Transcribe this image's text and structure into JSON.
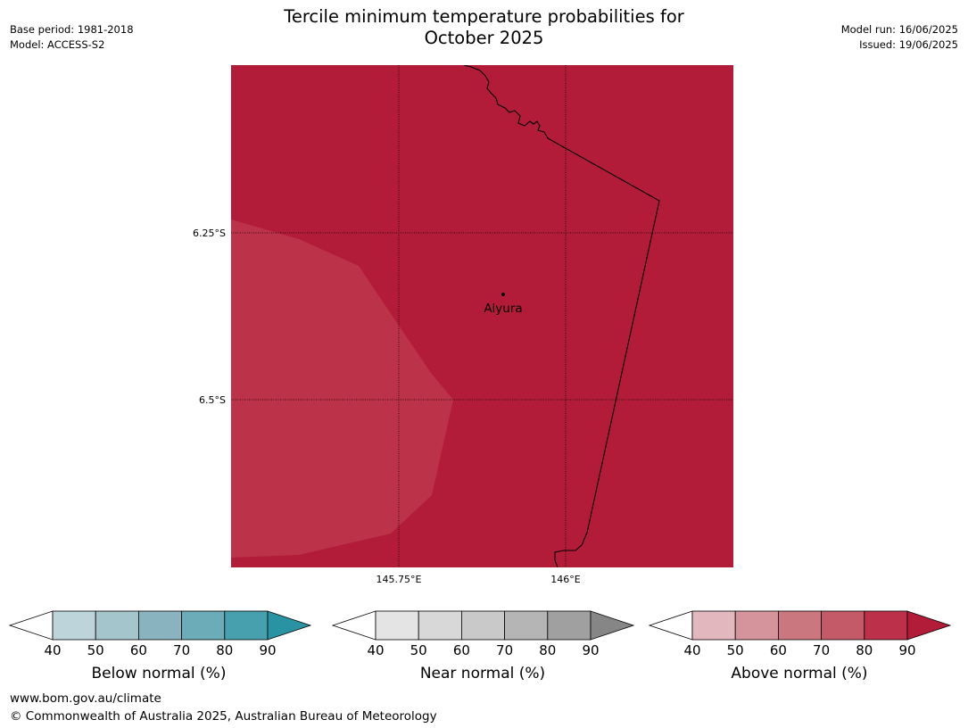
{
  "header": {
    "title_line1": "Tercile minimum temperature probabilities for",
    "title_line2": "October 2025",
    "base_period": "Base period: 1981-2018",
    "model": "Model: ACCESS-S2",
    "model_run": "Model run: 16/06/2025",
    "issued": "Issued: 19/06/2025"
  },
  "map": {
    "latitude_labels": [
      "6.25°S",
      "6.5°S"
    ],
    "longitude_labels": [
      "145.75°E",
      "146°E"
    ],
    "place": {
      "name": "Aiyura",
      "icon": "location-dot-icon"
    },
    "colors": {
      "dominant_fill": "#b21c38",
      "lighter_fill": "#bc3349",
      "border_line": "#000000",
      "gridline": "#000000"
    }
  },
  "colorbars": [
    {
      "label": "Below normal (%)",
      "ticks": [
        "40",
        "50",
        "60",
        "70",
        "80",
        "90"
      ],
      "colors": [
        "#ffffff",
        "#bcd4da",
        "#a4c5cb",
        "#89b4bf",
        "#6cacb9",
        "#47a0ae",
        "#2a93a3"
      ]
    },
    {
      "label": "Near normal (%)",
      "ticks": [
        "40",
        "50",
        "60",
        "70",
        "80",
        "90"
      ],
      "colors": [
        "#ffffff",
        "#e4e4e4",
        "#d8d8d8",
        "#c9c9c9",
        "#b5b5b5",
        "#a0a0a0",
        "#868686"
      ]
    },
    {
      "label": "Above normal (%)",
      "ticks": [
        "40",
        "50",
        "60",
        "70",
        "80",
        "90"
      ],
      "colors": [
        "#ffffff",
        "#e2b7bd",
        "#d5939b",
        "#cb7780",
        "#c45a68",
        "#bc3149",
        "#b21c38"
      ]
    }
  ],
  "footer": {
    "website": "www.bom.gov.au/climate",
    "copyright": "© Commonwealth of Australia 2025, Australian Bureau of Meteorology"
  }
}
